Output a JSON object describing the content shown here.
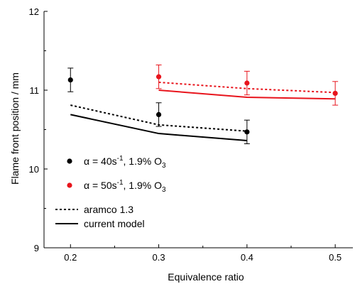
{
  "chart_data": {
    "type": "scatter",
    "title": "",
    "xlabel": "Equivalence ratio",
    "ylabel": "Flame front position / mm",
    "xlim": [
      0.17,
      0.52
    ],
    "ylim": [
      9,
      12
    ],
    "xticks": [
      0.2,
      0.3,
      0.4,
      0.5
    ],
    "xtick_labels": [
      "0.2",
      "0.3",
      "0.4",
      "0.5"
    ],
    "yticks": [
      9,
      10,
      11,
      12
    ],
    "ytick_labels": [
      "9",
      "10",
      "11",
      "12"
    ],
    "grid": false,
    "legend_position": "bottom-left",
    "series": [
      {
        "name_main": "α = 40s",
        "name_sup": "-1",
        "name_tail": ", 1.9% O",
        "name_sub": "3",
        "kind": "points",
        "color": "#000000",
        "x": [
          0.2,
          0.3,
          0.4
        ],
        "y": [
          11.13,
          10.69,
          10.47
        ],
        "err": [
          0.15,
          0.15,
          0.15
        ]
      },
      {
        "name_main": "α = 50s",
        "name_sup": "-1",
        "name_tail": ", 1.9% O",
        "name_sub": "3",
        "kind": "points",
        "color": "#e8141c",
        "x": [
          0.3,
          0.4,
          0.5
        ],
        "y": [
          11.17,
          11.09,
          10.96
        ],
        "err": [
          0.15,
          0.15,
          0.15
        ]
      },
      {
        "name": "aramco 1.3",
        "kind": "dotted-line",
        "color": "#000000",
        "x": [
          0.2,
          0.3,
          0.4
        ],
        "y": [
          10.81,
          10.56,
          10.48
        ]
      },
      {
        "name": "current model",
        "kind": "solid-line",
        "color": "#000000",
        "x": [
          0.2,
          0.3,
          0.4
        ],
        "y": [
          10.69,
          10.45,
          10.36
        ]
      },
      {
        "name": "",
        "kind": "dotted-line",
        "color": "#e8141c",
        "x": [
          0.3,
          0.4,
          0.5
        ],
        "y": [
          11.1,
          11.02,
          10.97
        ]
      },
      {
        "name": "",
        "kind": "solid-line",
        "color": "#e8141c",
        "x": [
          0.3,
          0.4,
          0.5
        ],
        "y": [
          11.0,
          10.91,
          10.89
        ]
      }
    ]
  }
}
